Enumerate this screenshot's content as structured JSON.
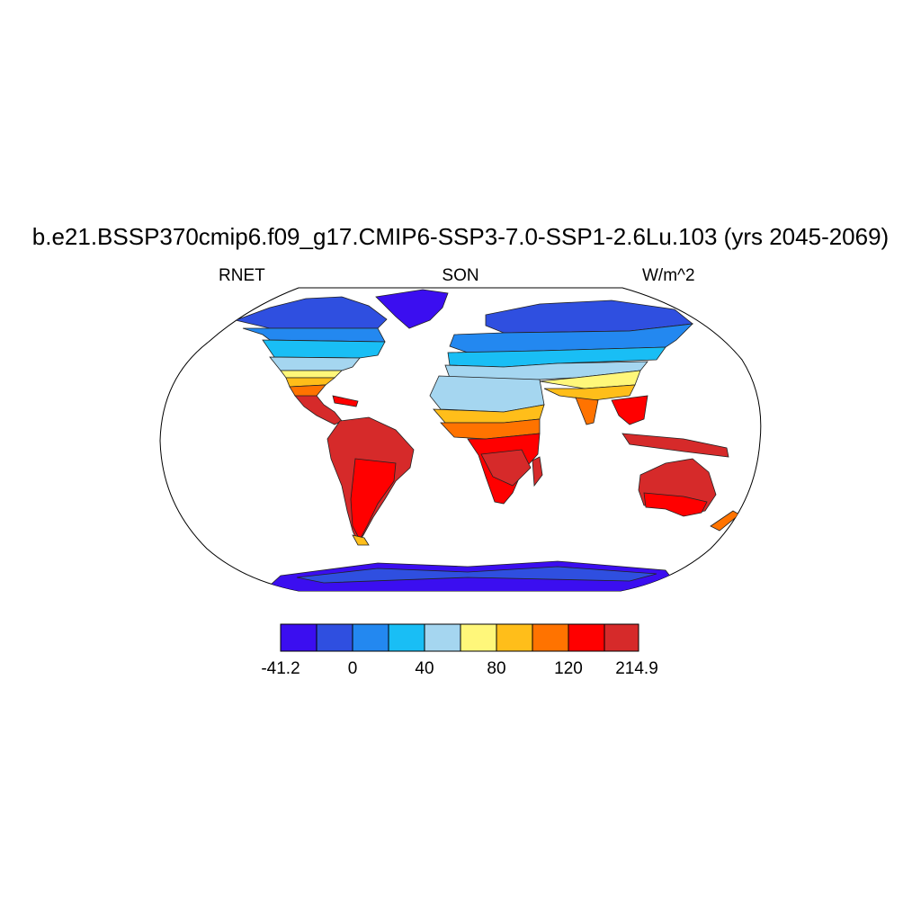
{
  "map": {
    "title": "b.e21.BSSP370cmip6.f09_g17.CMIP6-SSP3-7.0-SSP1-2.6Lu.103 (yrs 2045-2069)",
    "left_label": "RNET",
    "center_label": "SON",
    "right_label": "W/m^2",
    "projection": "robinson",
    "colorbar": {
      "colors": [
        "#3b0ef0",
        "#2f4fe0",
        "#2388f0",
        "#19bef5",
        "#a5d6f0",
        "#fff77a",
        "#ffbe1a",
        "#ff7300",
        "#ff0000",
        "#d62a2a"
      ],
      "labels": [
        "-41.2",
        "0",
        "40",
        "80",
        "120",
        "214.9"
      ]
    },
    "colors": {
      "ocean": "#ffffff",
      "border": "#000000"
    }
  }
}
